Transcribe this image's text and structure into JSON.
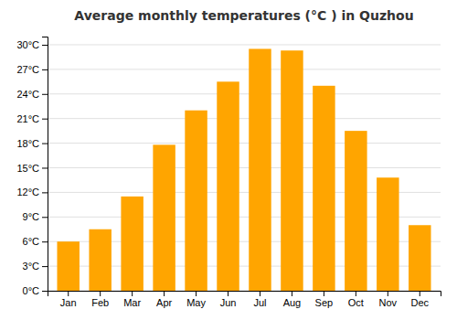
{
  "chart_data": {
    "type": "bar",
    "title": "Average monthly temperatures (°C ) in Quzhou",
    "categories": [
      "Jan",
      "Feb",
      "Mar",
      "Apr",
      "May",
      "Jun",
      "Jul",
      "Aug",
      "Sep",
      "Oct",
      "Nov",
      "Dec"
    ],
    "values": [
      6.0,
      7.5,
      11.5,
      17.8,
      22.0,
      25.5,
      29.5,
      29.3,
      25.0,
      19.5,
      13.8,
      8.0
    ],
    "color": "#FFA500",
    "ylim": [
      0,
      31
    ],
    "yticks": [
      {
        "value": 0,
        "label": "0°C"
      },
      {
        "value": 3,
        "label": "3°C"
      },
      {
        "value": 6,
        "label": "6°C"
      },
      {
        "value": 9,
        "label": "9°C"
      },
      {
        "value": 12,
        "label": "12°C"
      },
      {
        "value": 15,
        "label": "15°C"
      },
      {
        "value": 18,
        "label": "18°C"
      },
      {
        "value": 21,
        "label": "21°C"
      },
      {
        "value": 24,
        "label": "24°C"
      },
      {
        "value": 27,
        "label": "27°C"
      },
      {
        "value": 30,
        "label": "30°C"
      }
    ],
    "grid": true
  }
}
